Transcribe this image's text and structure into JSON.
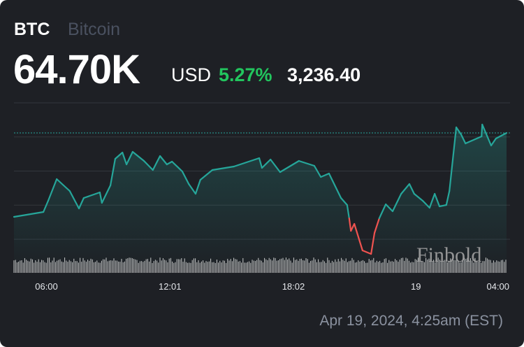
{
  "header": {
    "symbol": "BTC",
    "name": "Bitcoin",
    "price": "64.70K",
    "currency": "USD",
    "change_pct": "5.27%",
    "change_abs": "3,236.40"
  },
  "timestamp": "Apr 19, 2024, 4:25am (EST)",
  "watermark": "Finbold",
  "colors": {
    "background": "#1e2025",
    "up": "#26a69a",
    "down": "#ef5350",
    "pct": "#22c55e"
  },
  "chart_data": {
    "type": "line",
    "title": "",
    "xlabel": "",
    "ylabel": "",
    "grid": true,
    "baseline_price": 61464,
    "ylim": [
      60600,
      65865
    ],
    "xlim": [
      "2024-04-18T04:25",
      "2024-04-19T04:25"
    ],
    "x_ticks": [
      {
        "label": "06:00",
        "t": "2024-04-18T06:00"
      },
      {
        "label": "12:01",
        "t": "2024-04-18T12:01"
      },
      {
        "label": "18:02",
        "t": "2024-04-18T18:02"
      },
      {
        "label": "19",
        "t": "2024-04-19T00:00"
      },
      {
        "label": "04:00",
        "t": "2024-04-19T04:00"
      }
    ],
    "series": [
      {
        "points": [
          [
            "2024-04-18T04:25",
            61464
          ],
          [
            "2024-04-18T05:51",
            61653
          ],
          [
            "2024-04-18T06:05",
            62085
          ],
          [
            "2024-04-18T06:30",
            62922
          ],
          [
            "2024-04-18T07:08",
            62463
          ],
          [
            "2024-04-18T07:35",
            61788
          ],
          [
            "2024-04-18T07:49",
            62193
          ],
          [
            "2024-04-18T08:36",
            62409
          ],
          [
            "2024-04-18T08:42",
            62004
          ],
          [
            "2024-04-18T09:07",
            62679
          ],
          [
            "2024-04-18T09:21",
            63705
          ],
          [
            "2024-04-18T09:42",
            63948
          ],
          [
            "2024-04-18T09:54",
            63489
          ],
          [
            "2024-04-18T10:12",
            63975
          ],
          [
            "2024-04-18T10:45",
            63624
          ],
          [
            "2024-04-18T11:11",
            63273
          ],
          [
            "2024-04-18T11:32",
            63813
          ],
          [
            "2024-04-18T11:52",
            63489
          ],
          [
            "2024-04-18T12:07",
            63597
          ],
          [
            "2024-04-18T12:37",
            63219
          ],
          [
            "2024-04-18T12:56",
            62733
          ],
          [
            "2024-04-18T13:16",
            62355
          ],
          [
            "2024-04-18T13:30",
            62895
          ],
          [
            "2024-04-18T14:05",
            63273
          ],
          [
            "2024-04-18T15:08",
            63408
          ],
          [
            "2024-04-18T16:22",
            63732
          ],
          [
            "2024-04-18T16:30",
            63354
          ],
          [
            "2024-04-18T16:55",
            63678
          ],
          [
            "2024-04-18T17:23",
            63192
          ],
          [
            "2024-04-18T18:18",
            63624
          ],
          [
            "2024-04-18T19:03",
            63435
          ],
          [
            "2024-04-18T19:22",
            63003
          ],
          [
            "2024-04-18T19:46",
            63138
          ],
          [
            "2024-04-18T20:21",
            62193
          ],
          [
            "2024-04-18T20:39",
            61923
          ],
          [
            "2024-04-18T20:45",
            61410
          ],
          [
            "2024-04-18T20:50",
            60924
          ],
          [
            "2024-04-18T21:00",
            61194
          ],
          [
            "2024-04-18T21:24",
            60168
          ],
          [
            "2024-04-18T21:49",
            60033
          ],
          [
            "2024-04-18T21:59",
            60843
          ],
          [
            "2024-04-18T22:13",
            61410
          ],
          [
            "2024-04-18T22:32",
            61950
          ],
          [
            "2024-04-18T22:52",
            61680
          ],
          [
            "2024-04-18T23:17",
            62355
          ],
          [
            "2024-04-18T23:41",
            62733
          ],
          [
            "2024-04-18T23:55",
            62355
          ],
          [
            "2024-04-19T00:20",
            62085
          ],
          [
            "2024-04-19T00:40",
            61815
          ],
          [
            "2024-04-19T00:55",
            62355
          ],
          [
            "2024-04-19T01:09",
            61869
          ],
          [
            "2024-04-19T01:29",
            61923
          ],
          [
            "2024-04-19T01:38",
            62463
          ],
          [
            "2024-04-19T01:58",
            64920
          ],
          [
            "2024-04-19T02:12",
            64650
          ],
          [
            "2024-04-19T02:25",
            64299
          ],
          [
            "2024-04-19T03:12",
            64569
          ],
          [
            "2024-04-19T03:14",
            65028
          ],
          [
            "2024-04-19T03:40",
            64218
          ],
          [
            "2024-04-19T03:54",
            64488
          ],
          [
            "2024-04-19T04:25",
            64704
          ]
        ]
      }
    ]
  }
}
